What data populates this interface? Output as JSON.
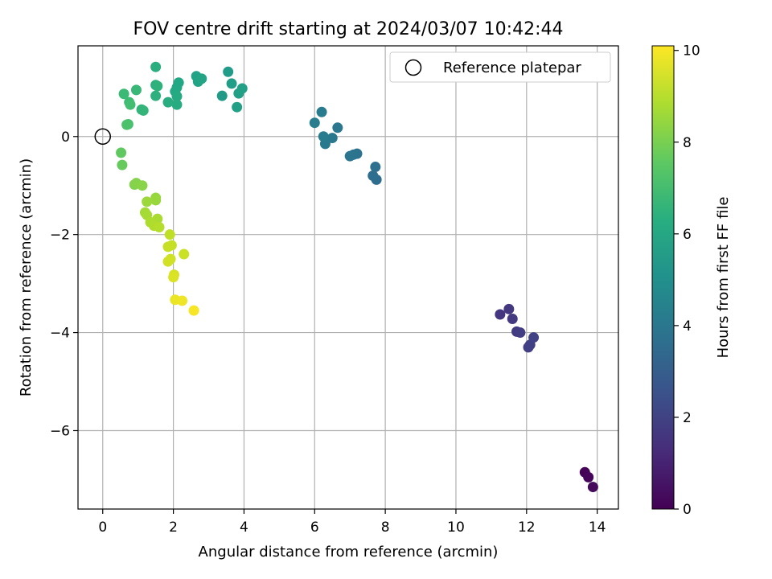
{
  "chart_data": {
    "type": "scatter",
    "title": "FOV centre drift starting at 2024/03/07 10:42:44",
    "xlabel": "Angular distance from reference (arcmin)",
    "ylabel": "Rotation from reference (arcmin)",
    "xlim": [
      -0.7,
      14.6
    ],
    "ylim": [
      -7.6,
      1.85
    ],
    "xticks": [
      0,
      2,
      4,
      6,
      8,
      10,
      12,
      14
    ],
    "yticks": [
      0,
      -2,
      -4,
      -6
    ],
    "xtick_labels": [
      "0",
      "2",
      "4",
      "6",
      "8",
      "10",
      "12",
      "14"
    ],
    "ytick_labels": [
      "0",
      "−2",
      "−4",
      "−6"
    ],
    "grid": true,
    "legend": {
      "placement": "top-right",
      "entries": [
        "Reference platepar"
      ]
    },
    "reference_point": {
      "x": 0,
      "y": 0
    },
    "colorbar": {
      "label": "Hours from first FF file",
      "range": [
        0,
        10.1
      ],
      "ticks": [
        0,
        2,
        4,
        6,
        8,
        10
      ],
      "tick_labels": [
        "0",
        "2",
        "4",
        "6",
        "8",
        "10"
      ],
      "colormap": "viridis"
    },
    "points": [
      {
        "x": 13.65,
        "y": -6.85,
        "c": 0.05
      },
      {
        "x": 13.75,
        "y": -6.95,
        "c": 0.15
      },
      {
        "x": 13.88,
        "y": -7.15,
        "c": 0.25
      },
      {
        "x": 11.25,
        "y": -3.63,
        "c": 1.6
      },
      {
        "x": 11.5,
        "y": -3.52,
        "c": 1.65
      },
      {
        "x": 11.6,
        "y": -3.72,
        "c": 1.7
      },
      {
        "x": 11.72,
        "y": -3.98,
        "c": 1.75
      },
      {
        "x": 11.82,
        "y": -4.0,
        "c": 1.8
      },
      {
        "x": 12.05,
        "y": -4.3,
        "c": 1.85
      },
      {
        "x": 12.1,
        "y": -4.25,
        "c": 1.9
      },
      {
        "x": 12.2,
        "y": -4.1,
        "c": 1.95
      },
      {
        "x": 7.75,
        "y": -0.88,
        "c": 3.6
      },
      {
        "x": 7.65,
        "y": -0.8,
        "c": 3.65
      },
      {
        "x": 7.72,
        "y": -0.62,
        "c": 3.7
      },
      {
        "x": 7.2,
        "y": -0.35,
        "c": 3.8
      },
      {
        "x": 7.1,
        "y": -0.37,
        "c": 3.85
      },
      {
        "x": 7.0,
        "y": -0.4,
        "c": 3.9
      },
      {
        "x": 6.65,
        "y": 0.18,
        "c": 4.0
      },
      {
        "x": 6.5,
        "y": -0.03,
        "c": 4.05
      },
      {
        "x": 6.3,
        "y": -0.15,
        "c": 4.1
      },
      {
        "x": 6.25,
        "y": 0.0,
        "c": 4.15
      },
      {
        "x": 6.2,
        "y": 0.5,
        "c": 4.2
      },
      {
        "x": 6.0,
        "y": 0.28,
        "c": 4.3
      },
      {
        "x": 3.38,
        "y": 0.83,
        "c": 5.5
      },
      {
        "x": 3.55,
        "y": 1.32,
        "c": 5.55
      },
      {
        "x": 3.65,
        "y": 1.08,
        "c": 5.6
      },
      {
        "x": 3.8,
        "y": 0.6,
        "c": 5.65
      },
      {
        "x": 3.85,
        "y": 0.88,
        "c": 5.7
      },
      {
        "x": 3.95,
        "y": 0.98,
        "c": 5.75
      },
      {
        "x": 2.65,
        "y": 1.23,
        "c": 5.8
      },
      {
        "x": 2.7,
        "y": 1.12,
        "c": 5.85
      },
      {
        "x": 2.8,
        "y": 1.18,
        "c": 5.9
      },
      {
        "x": 2.1,
        "y": 1.0,
        "c": 6.0
      },
      {
        "x": 2.15,
        "y": 1.1,
        "c": 6.05
      },
      {
        "x": 2.05,
        "y": 0.92,
        "c": 6.1
      },
      {
        "x": 2.1,
        "y": 0.82,
        "c": 6.15
      },
      {
        "x": 2.1,
        "y": 0.65,
        "c": 6.2
      },
      {
        "x": 1.85,
        "y": 0.7,
        "c": 6.25
      },
      {
        "x": 1.5,
        "y": 1.42,
        "c": 6.3
      },
      {
        "x": 1.5,
        "y": 1.05,
        "c": 6.35
      },
      {
        "x": 1.5,
        "y": 0.83,
        "c": 6.4
      },
      {
        "x": 1.55,
        "y": 1.03,
        "c": 6.45
      },
      {
        "x": 1.1,
        "y": 0.55,
        "c": 6.55
      },
      {
        "x": 1.15,
        "y": 0.53,
        "c": 6.6
      },
      {
        "x": 0.95,
        "y": 0.95,
        "c": 6.7
      },
      {
        "x": 0.6,
        "y": 0.87,
        "c": 6.8
      },
      {
        "x": 0.75,
        "y": 0.7,
        "c": 6.9
      },
      {
        "x": 0.78,
        "y": 0.65,
        "c": 7.0
      },
      {
        "x": 0.72,
        "y": 0.25,
        "c": 7.1
      },
      {
        "x": 0.68,
        "y": 0.24,
        "c": 7.2
      },
      {
        "x": 0.52,
        "y": -0.33,
        "c": 7.6
      },
      {
        "x": 0.55,
        "y": -0.58,
        "c": 7.7
      },
      {
        "x": 0.9,
        "y": -0.98,
        "c": 8.2
      },
      {
        "x": 0.95,
        "y": -0.95,
        "c": 8.25
      },
      {
        "x": 1.12,
        "y": -1.0,
        "c": 8.3
      },
      {
        "x": 1.5,
        "y": -1.25,
        "c": 8.5
      },
      {
        "x": 1.5,
        "y": -1.3,
        "c": 8.55
      },
      {
        "x": 1.25,
        "y": -1.33,
        "c": 8.6
      },
      {
        "x": 1.2,
        "y": -1.55,
        "c": 8.7
      },
      {
        "x": 1.25,
        "y": -1.6,
        "c": 8.75
      },
      {
        "x": 1.55,
        "y": -1.68,
        "c": 8.8
      },
      {
        "x": 1.35,
        "y": -1.75,
        "c": 8.85
      },
      {
        "x": 1.45,
        "y": -1.82,
        "c": 8.9
      },
      {
        "x": 1.6,
        "y": -1.85,
        "c": 8.95
      },
      {
        "x": 1.9,
        "y": -2.0,
        "c": 9.1
      },
      {
        "x": 1.95,
        "y": -2.22,
        "c": 9.2
      },
      {
        "x": 1.85,
        "y": -2.25,
        "c": 9.25
      },
      {
        "x": 2.3,
        "y": -2.4,
        "c": 9.3
      },
      {
        "x": 1.92,
        "y": -2.5,
        "c": 9.35
      },
      {
        "x": 1.85,
        "y": -2.55,
        "c": 9.4
      },
      {
        "x": 2.02,
        "y": -2.82,
        "c": 9.5
      },
      {
        "x": 2.0,
        "y": -2.87,
        "c": 9.55
      },
      {
        "x": 2.05,
        "y": -3.33,
        "c": 9.8
      },
      {
        "x": 2.25,
        "y": -3.35,
        "c": 9.85
      },
      {
        "x": 2.58,
        "y": -3.55,
        "c": 10.0
      }
    ]
  }
}
